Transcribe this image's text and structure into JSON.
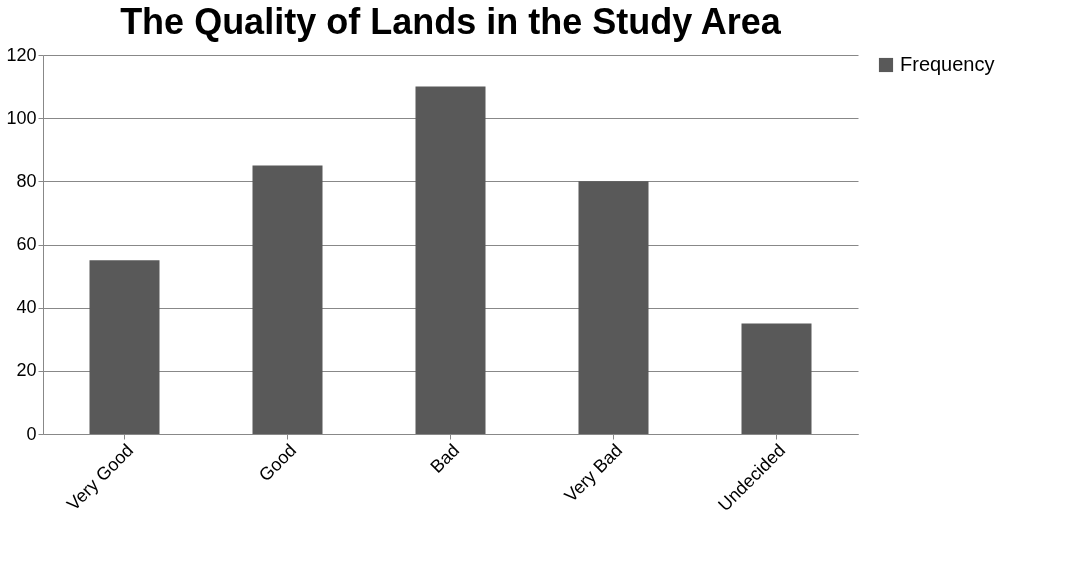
{
  "chart_data": {
    "type": "bar",
    "title": "The Quality of Lands in the Study Area",
    "categories": [
      "Very Good",
      "Good",
      "Bad",
      "Very Bad",
      "Undecided"
    ],
    "series": [
      {
        "name": "Frequency",
        "color": "#595959",
        "values": [
          55,
          85,
          110,
          80,
          35
        ]
      }
    ],
    "ylim": [
      0,
      120
    ],
    "yticks": [
      0,
      20,
      40,
      60,
      80,
      100,
      120
    ],
    "grid": "y",
    "legend": "right"
  }
}
